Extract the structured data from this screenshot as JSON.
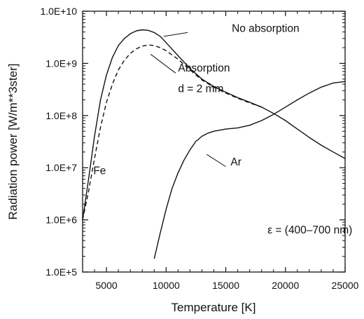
{
  "chart_data": {
    "type": "line",
    "title": "",
    "xlabel": "Temperature [K]",
    "ylabel": "Radiation power [W/m**3ster]",
    "xlim": [
      3000,
      25000
    ],
    "ylim": [
      100000,
      10000000000
    ],
    "yscale": "log",
    "grid": false,
    "x_ticks": [
      5000,
      10000,
      15000,
      20000,
      25000
    ],
    "x_tick_labels": [
      "5000",
      "10000",
      "15000",
      "20000",
      "25000"
    ],
    "y_ticks": [
      100000,
      1000000,
      10000000,
      100000000,
      1000000000,
      10000000000
    ],
    "y_tick_labels": [
      "1.0E+5",
      "1.0E+6",
      "1.0E+7",
      "1.0E+8",
      "1.0E+9",
      "1.0E+10"
    ],
    "series": [
      {
        "name": "No absorption",
        "style": "solid",
        "x": [
          3000,
          3500,
          4000,
          4500,
          5000,
          5500,
          6000,
          6500,
          7000,
          7500,
          8000,
          8500,
          9000,
          9500,
          10000,
          11000,
          12000,
          13000,
          14000,
          15000,
          16000,
          17000,
          18000,
          19000,
          20000,
          21000,
          22000,
          23000,
          24000,
          25000
        ],
        "y": [
          1000000,
          6000000,
          40000000,
          200000000,
          600000000,
          1300000000,
          2200000000,
          3000000000,
          3700000000,
          4200000000,
          4400000000,
          4300000000,
          3900000000,
          3300000000,
          2500000000,
          1400000000,
          800000000,
          500000000,
          360000000,
          280000000,
          220000000,
          180000000,
          145000000,
          110000000,
          80000000,
          55000000,
          38000000,
          27000000,
          20000000,
          15000000
        ]
      },
      {
        "name": "Absorption d = 2 mm",
        "style": "dashed",
        "x": [
          3000,
          3500,
          4000,
          4500,
          5000,
          5500,
          6000,
          6500,
          7000,
          7500,
          8000,
          8500,
          9000,
          9500,
          10000,
          11000,
          12000,
          13000,
          14000,
          15000,
          16000,
          17000,
          18000
        ],
        "y": [
          1000000,
          3500000,
          15000000,
          60000000,
          180000000,
          400000000,
          750000000,
          1150000000,
          1550000000,
          1900000000,
          2150000000,
          2250000000,
          2200000000,
          2000000000,
          1750000000,
          1200000000,
          750000000,
          480000000,
          350000000,
          270000000,
          215000000,
          175000000,
          145000000
        ]
      },
      {
        "name": "Ar",
        "style": "solid",
        "x": [
          9000,
          9500,
          10000,
          10500,
          11000,
          11500,
          12000,
          12500,
          13000,
          13500,
          14000,
          15000,
          16000,
          17000,
          18000,
          19000,
          20000,
          21000,
          22000,
          23000,
          24000,
          25000
        ],
        "y": [
          180000,
          550000,
          1600000,
          4000000,
          8000000,
          14000000,
          22000000,
          32000000,
          40000000,
          46000000,
          50000000,
          55000000,
          58000000,
          65000000,
          80000000,
          105000000,
          145000000,
          200000000,
          270000000,
          350000000,
          420000000,
          450000000
        ]
      }
    ],
    "annotations": [
      {
        "text": "No absorption",
        "x": 15500,
        "y": 4000000000
      },
      {
        "text": "Absorption",
        "x": 11000,
        "y": 700000000
      },
      {
        "text": "d = 2 mm",
        "x": 11000,
        "y": 280000000
      },
      {
        "text": "Fe",
        "x": 3900,
        "y": 7500000
      },
      {
        "text": "Ar",
        "x": 15400,
        "y": 11000000
      },
      {
        "text": "ε = (400–700 nm)",
        "x": 18500,
        "y": 550000
      }
    ],
    "leaders": [
      {
        "x1": 11800,
        "y1": 3900000000,
        "x2": 9800,
        "y2": 3300000000
      },
      {
        "x1": 10800,
        "y1": 650000000,
        "x2": 8700,
        "y2": 1500000000
      },
      {
        "x1": 15000,
        "y1": 10500000,
        "x2": 13400,
        "y2": 18000000
      }
    ]
  }
}
